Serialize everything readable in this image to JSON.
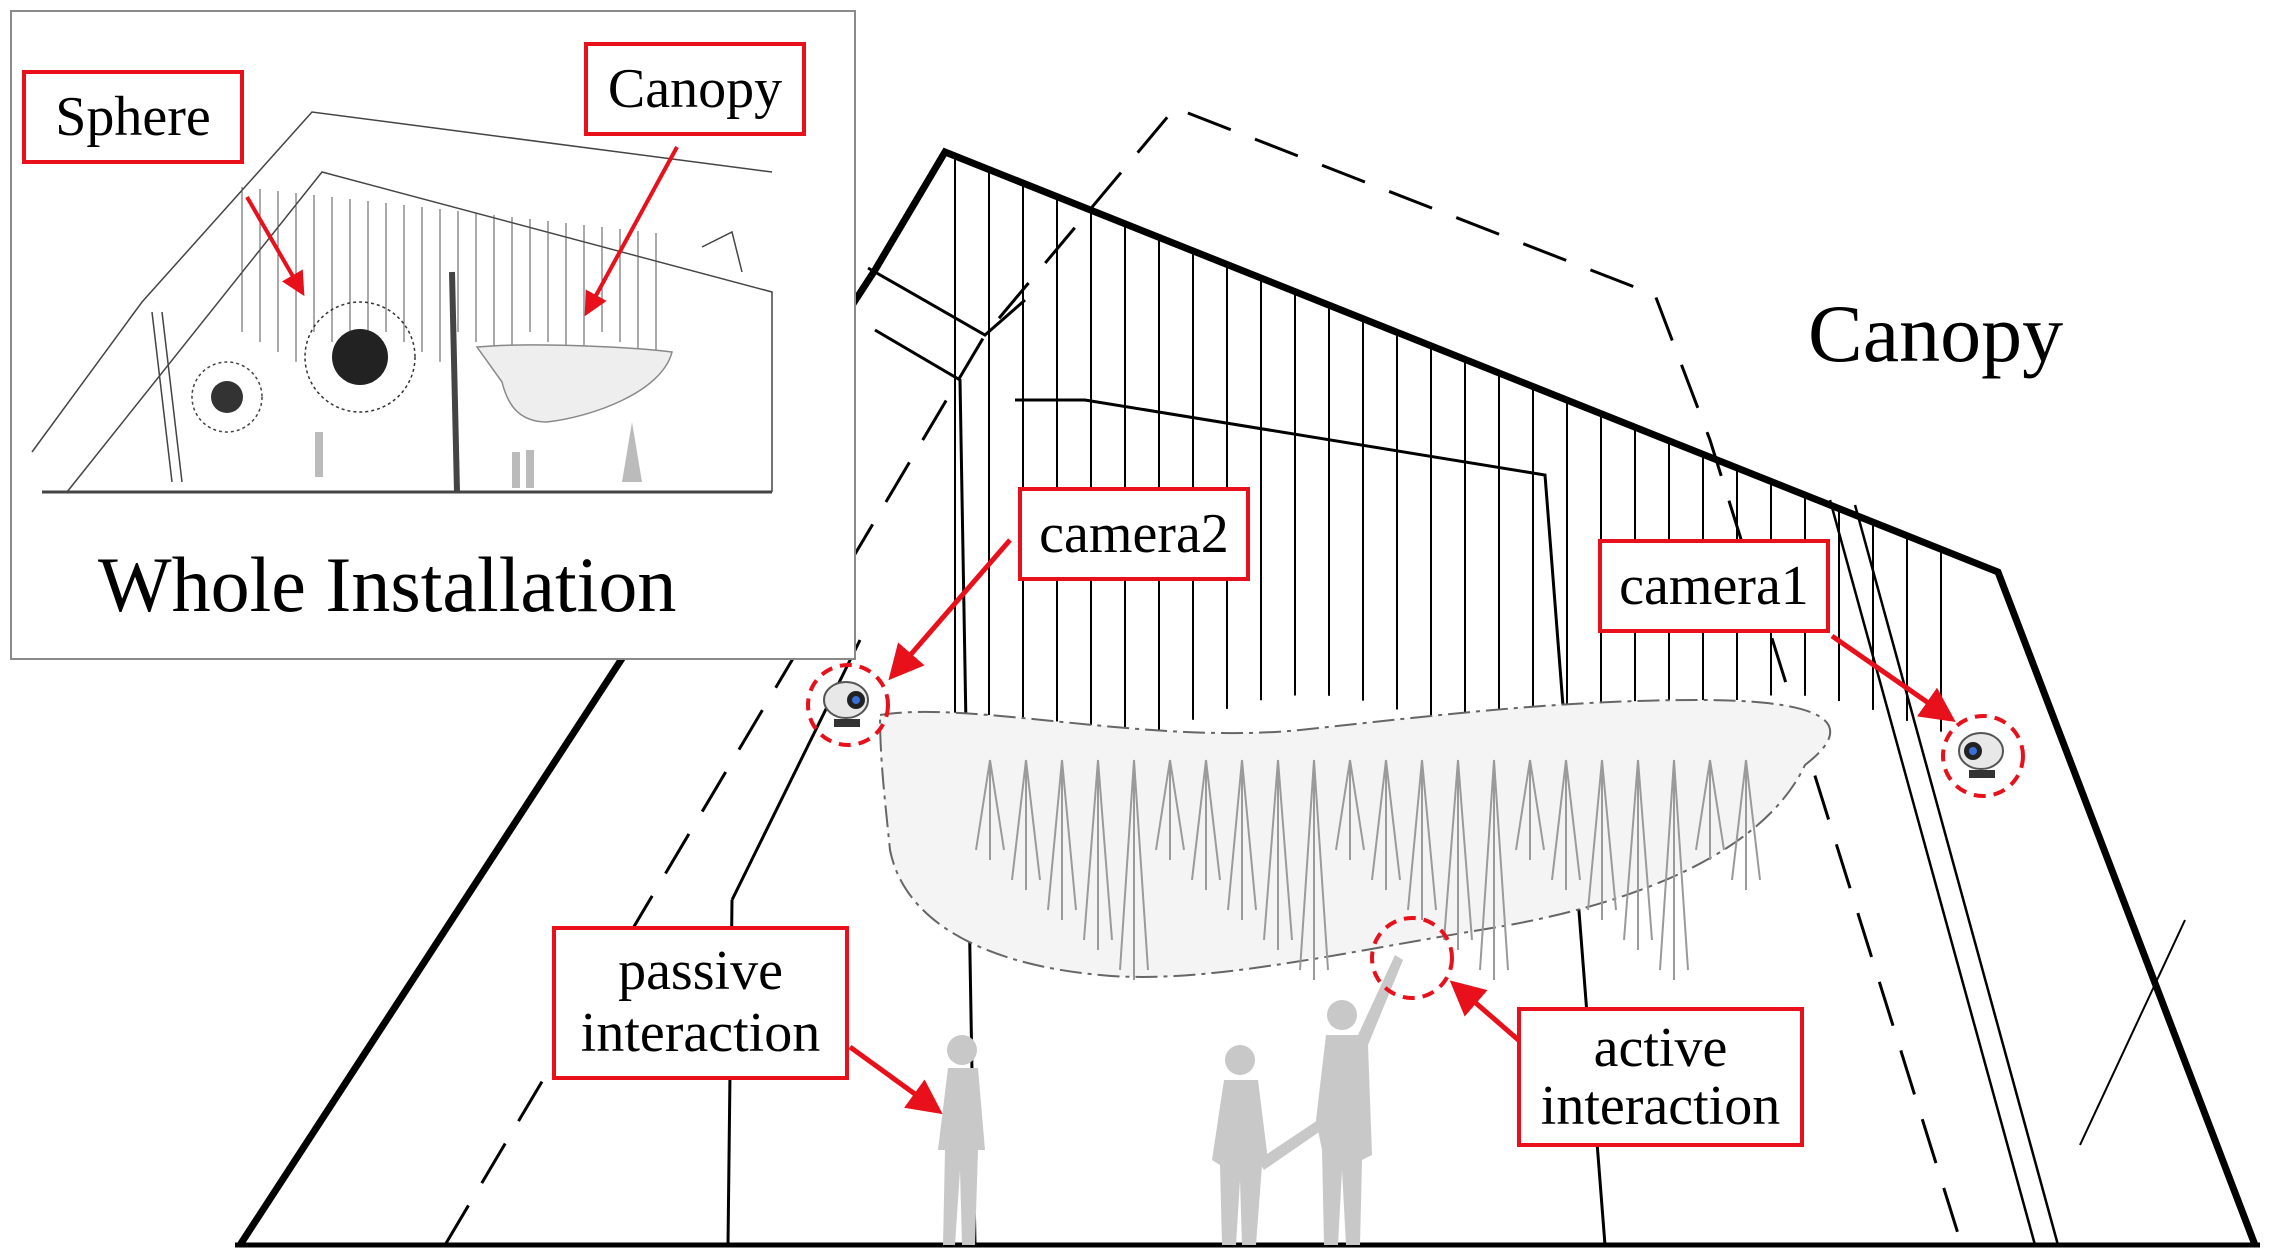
{
  "inset": {
    "title": "Whole Installation",
    "labels": {
      "sphere": "Sphere",
      "canopy": "Canopy"
    }
  },
  "main": {
    "title": "Canopy",
    "labels": {
      "camera1": "camera1",
      "camera2": "camera2",
      "passive_line1": "passive",
      "passive_line2": "interaction",
      "active_line1": "active",
      "active_line2": "interaction"
    }
  },
  "colors": {
    "accent": "#e8101b",
    "line": "#000000",
    "figure": "#c8c8c8",
    "frame": "#8a8a8a"
  },
  "icons": [
    "webcam-icon",
    "person-silhouette-icon",
    "arrow-icon"
  ]
}
